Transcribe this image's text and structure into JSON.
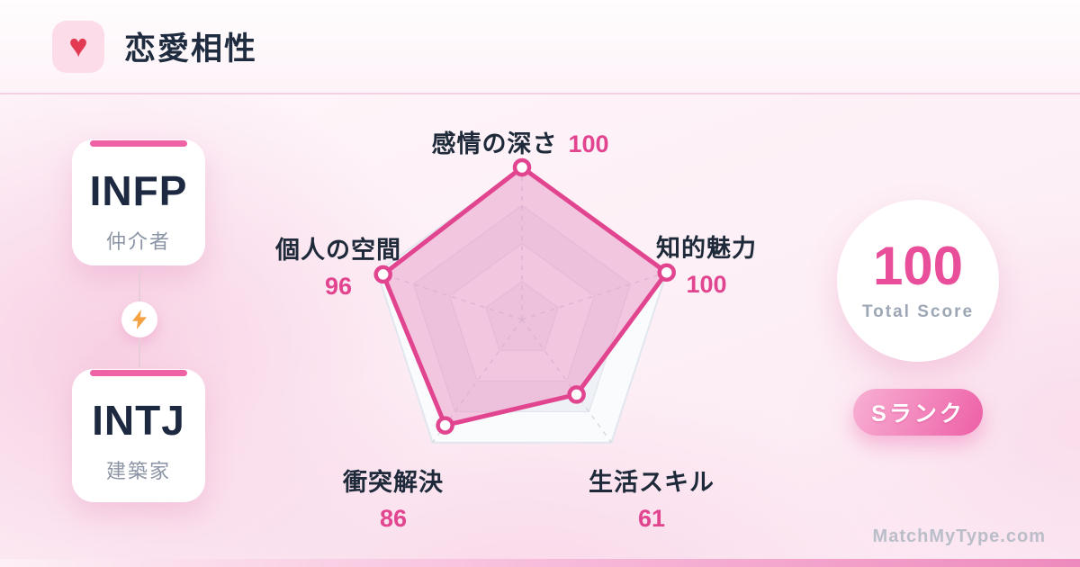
{
  "header": {
    "heart_icon": "♥",
    "title": "恋愛相性"
  },
  "pair": {
    "top": {
      "code": "INFP",
      "name": "仲介者"
    },
    "bottom": {
      "code": "INTJ",
      "name": "建築家"
    }
  },
  "chart_data": {
    "type": "radar",
    "grid": "pentagon",
    "levels": 4,
    "max": 100,
    "axes": [
      {
        "label": "感情の深さ",
        "value": 100
      },
      {
        "label": "知的魅力",
        "value": 100
      },
      {
        "label": "生活スキル",
        "value": 61
      },
      {
        "label": "衝突解決",
        "value": 86
      },
      {
        "label": "個人の空間",
        "value": 96
      }
    ],
    "accent": "#e2458f",
    "fill": "rgba(236,133,187,0.45)",
    "grid_stroke": "#e2e6ed",
    "grid_fill_a": "#fafbfd",
    "grid_fill_b": "#eef1f6",
    "spoke_stroke": "#d6dbe4"
  },
  "score": {
    "value": "100",
    "label": "Total Score"
  },
  "rank": {
    "label": "Sランク"
  },
  "watermark": "MatchMyType.com",
  "colors": {
    "accent": "#e2458f",
    "dark_text": "#1e2a3a",
    "card_bar": "#ef62a5",
    "bolt": "#f5a142"
  }
}
